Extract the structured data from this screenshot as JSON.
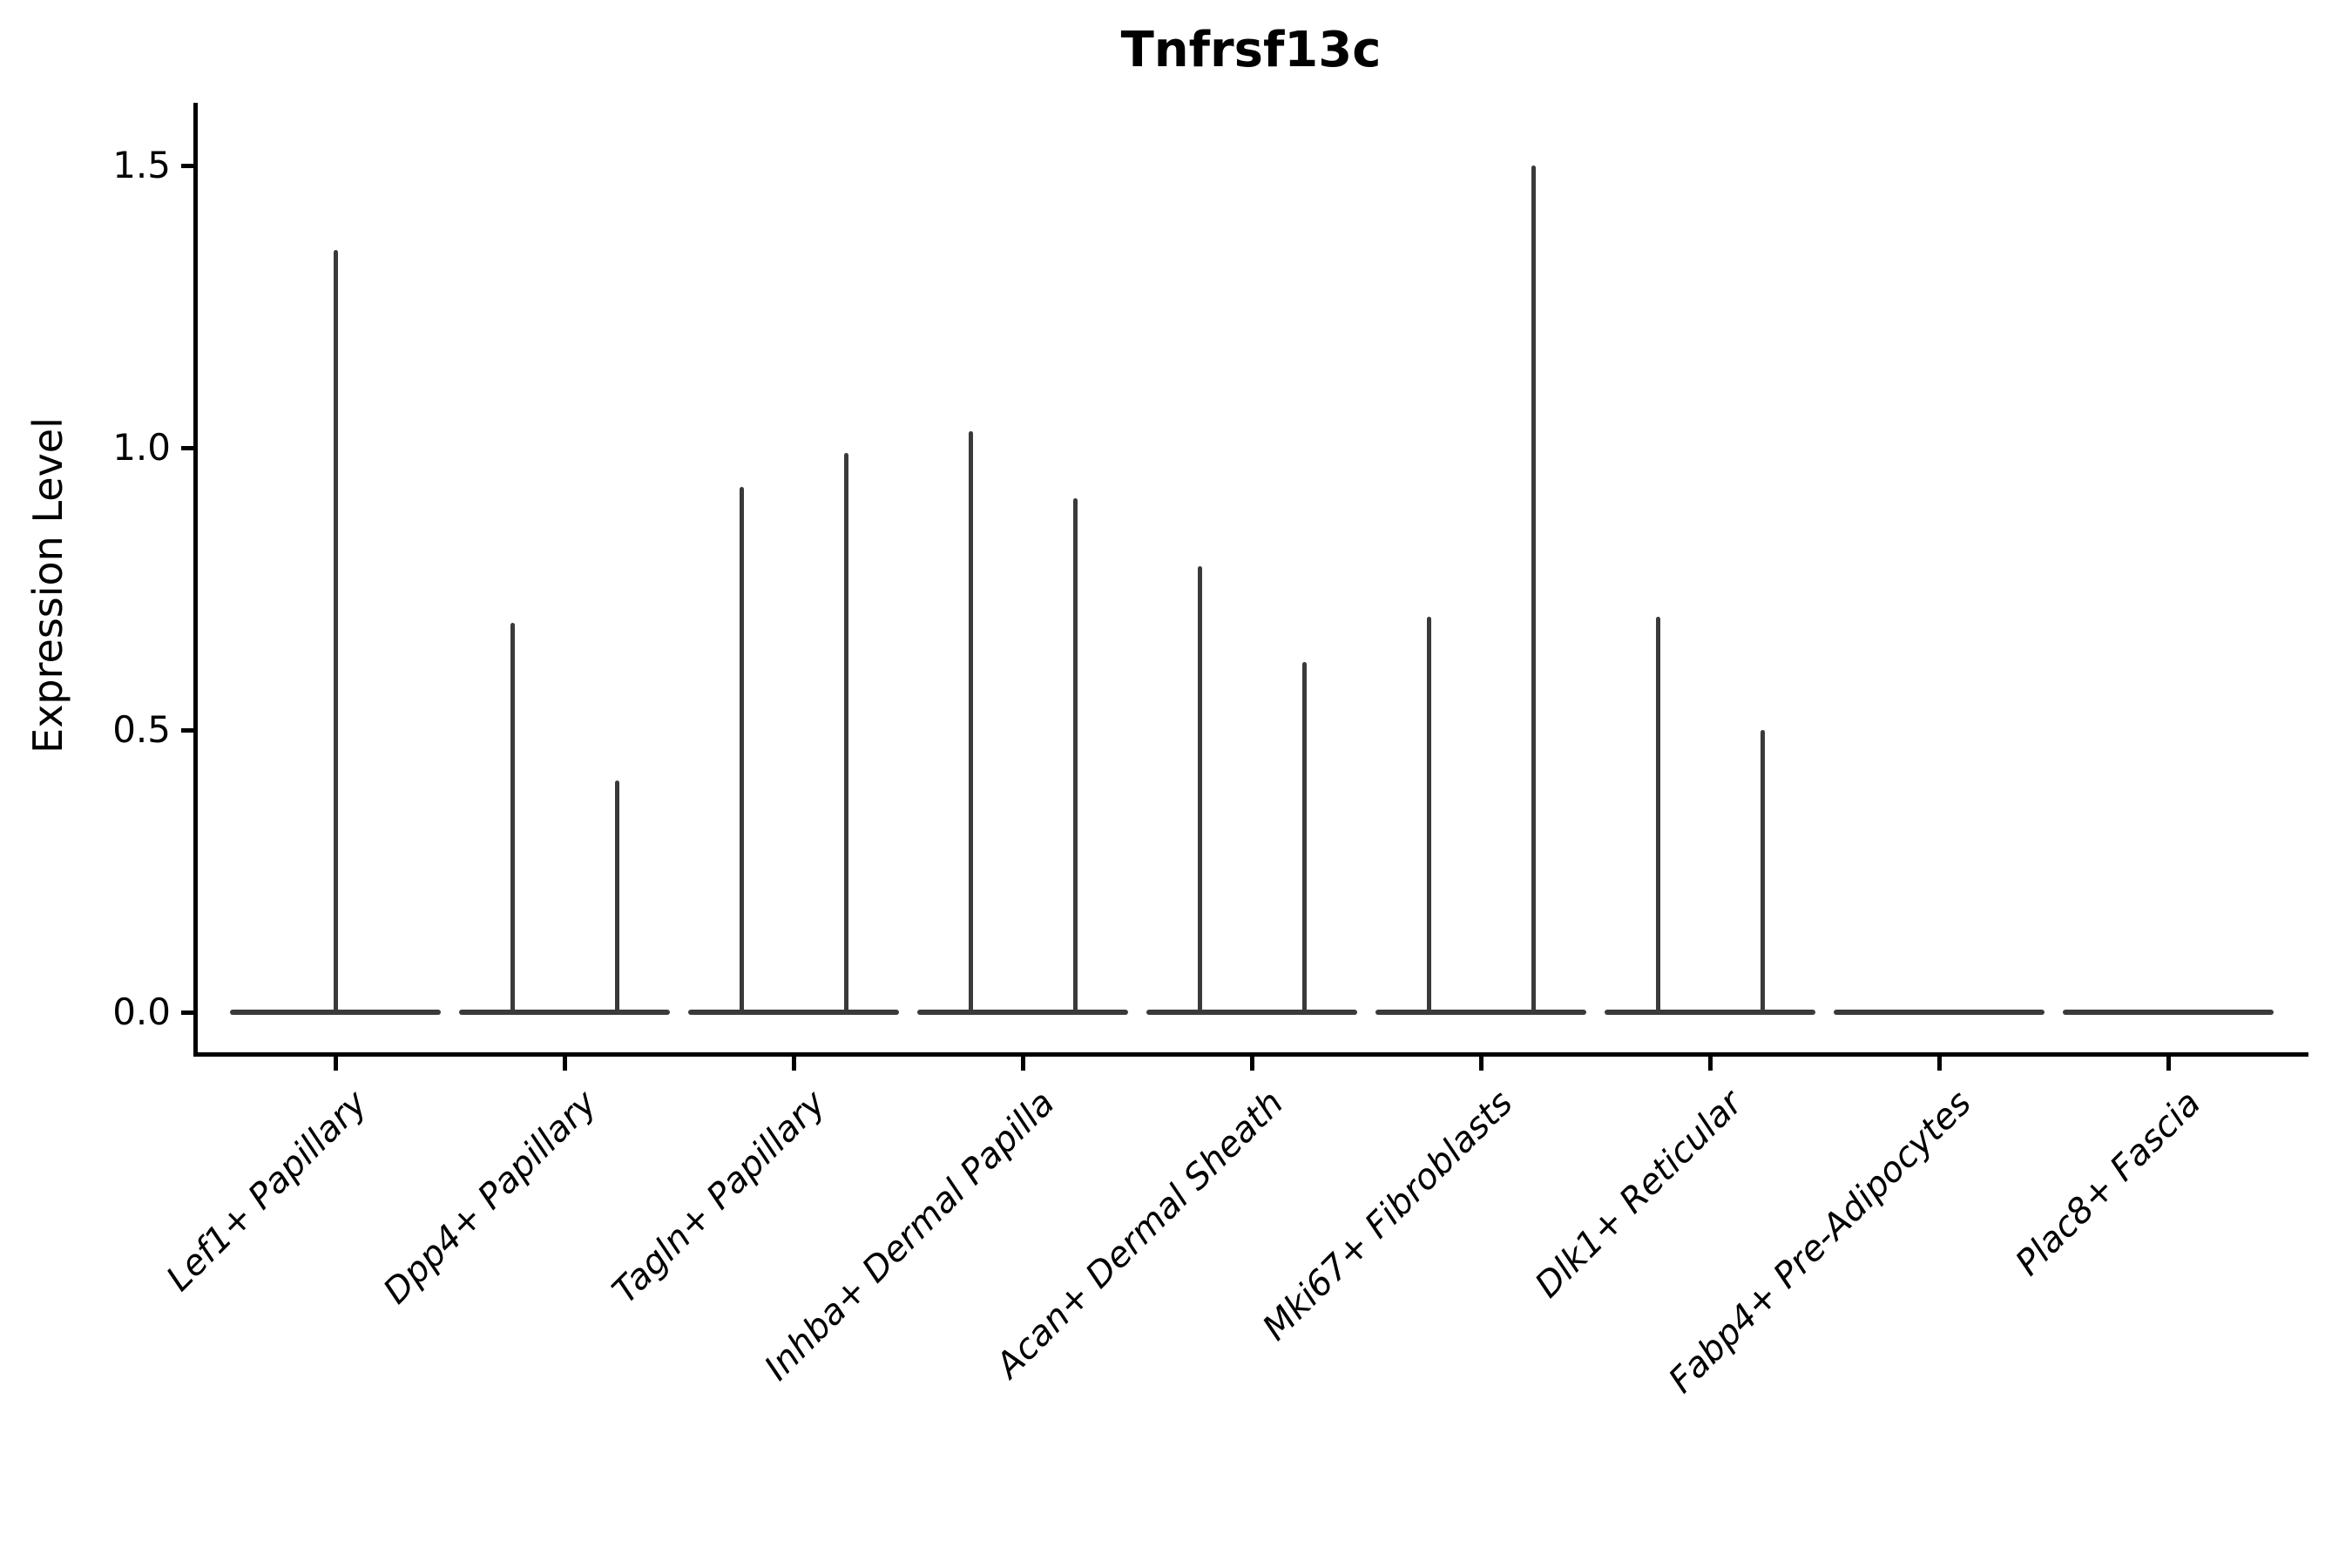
{
  "title": "Tnfrsf13c",
  "y_axis": {
    "label": "Expression Level",
    "tick_labels": [
      "1.5",
      "1.0",
      "0.5",
      "0.0"
    ]
  },
  "x_axis": {
    "tick_labels": [
      "Lef1+ Papillary",
      "Dpp4+ Papillary",
      "Tagln+ Papillary",
      "Inhba+ Dermal Papilla",
      "Acan+ Dermal Sheath",
      "Mki67+ Fibroblasts",
      "Dlk1+ Reticular",
      "Fabp4+ Pre-Adipocytes",
      "Plac8+ Fascia"
    ]
  },
  "chart_data": {
    "type": "violin",
    "title": "Tnfrsf13c",
    "xlabel": "",
    "ylabel": "Expression Level",
    "yticks": [
      0.0,
      0.5,
      1.0,
      1.5
    ],
    "ylim": [
      -0.07,
      1.61
    ],
    "grid": false,
    "legend": "none",
    "categories": [
      "Lef1+ Papillary",
      "Dpp4+ Papillary",
      "Tagln+ Papillary",
      "Inhba+ Dermal Papilla",
      "Acan+ Dermal Sheath",
      "Mki67+ Fibroblasts",
      "Dlk1+ Reticular",
      "Fabp4+ Pre-Adipocytes",
      "Plac8+ Fascia"
    ],
    "baseline_value": 0.0,
    "violins": [
      {
        "category": "Lef1+ Papillary",
        "spikes": [
          {
            "pos": "center",
            "max": 1.35
          }
        ]
      },
      {
        "category": "Dpp4+ Papillary",
        "spikes": [
          {
            "pos": "left",
            "max": 0.69
          },
          {
            "pos": "right",
            "max": 0.41
          }
        ]
      },
      {
        "category": "Tagln+ Papillary",
        "spikes": [
          {
            "pos": "left",
            "max": 0.93
          },
          {
            "pos": "right",
            "max": 0.99
          }
        ]
      },
      {
        "category": "Inhba+ Dermal Papilla",
        "spikes": [
          {
            "pos": "left",
            "max": 1.03
          },
          {
            "pos": "right",
            "max": 0.91
          }
        ]
      },
      {
        "category": "Acan+ Dermal Sheath",
        "spikes": [
          {
            "pos": "left",
            "max": 0.79
          },
          {
            "pos": "right",
            "max": 0.62
          }
        ]
      },
      {
        "category": "Mki67+ Fibroblasts",
        "spikes": [
          {
            "pos": "left",
            "max": 0.7
          },
          {
            "pos": "right",
            "max": 1.5
          }
        ]
      },
      {
        "category": "Dlk1+ Reticular",
        "spikes": [
          {
            "pos": "left",
            "max": 0.7
          },
          {
            "pos": "right",
            "max": 0.5
          }
        ]
      },
      {
        "category": "Fabp4+ Pre-Adipocytes",
        "spikes": []
      },
      {
        "category": "Plac8+ Fascia",
        "spikes": []
      }
    ],
    "colors": {
      "violin": "#3a3a3a",
      "axis": "#000000",
      "text": "#000000",
      "background": "#ffffff"
    }
  }
}
